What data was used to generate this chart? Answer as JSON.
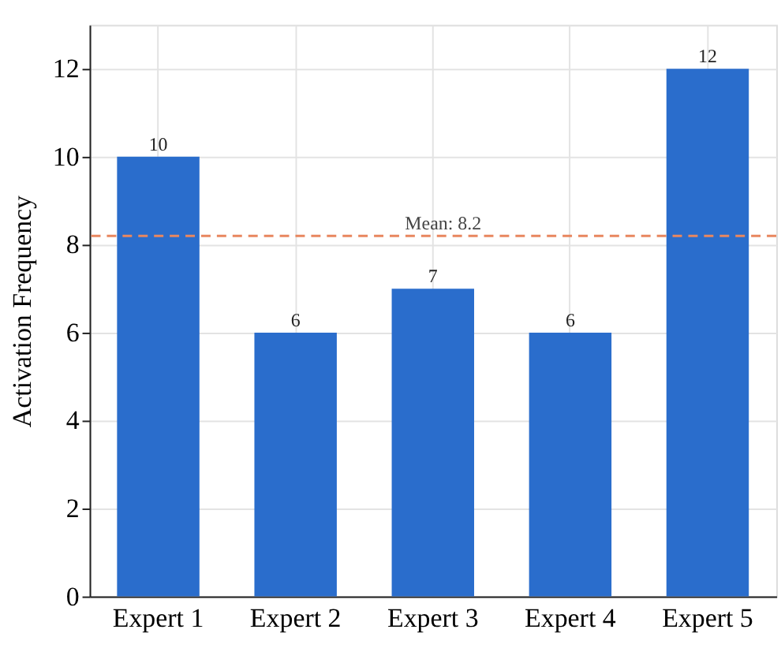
{
  "chart_data": {
    "type": "bar",
    "ylabel": "Activation Frequency",
    "categories": [
      "Expert 1",
      "Expert 2",
      "Expert 3",
      "Expert 4",
      "Expert 5"
    ],
    "values": [
      10,
      6,
      7,
      6,
      12
    ],
    "color": "#2a6dcc",
    "ylim": [
      0,
      13
    ],
    "yticks": [
      0,
      2,
      4,
      6,
      8,
      10,
      12
    ],
    "grid": true,
    "data_labels": true,
    "ref_lines": [
      {
        "axis": "y",
        "value": 8.2,
        "label": "Mean: 8.2",
        "color": "#e8875f",
        "line_style": "dashed"
      }
    ]
  }
}
